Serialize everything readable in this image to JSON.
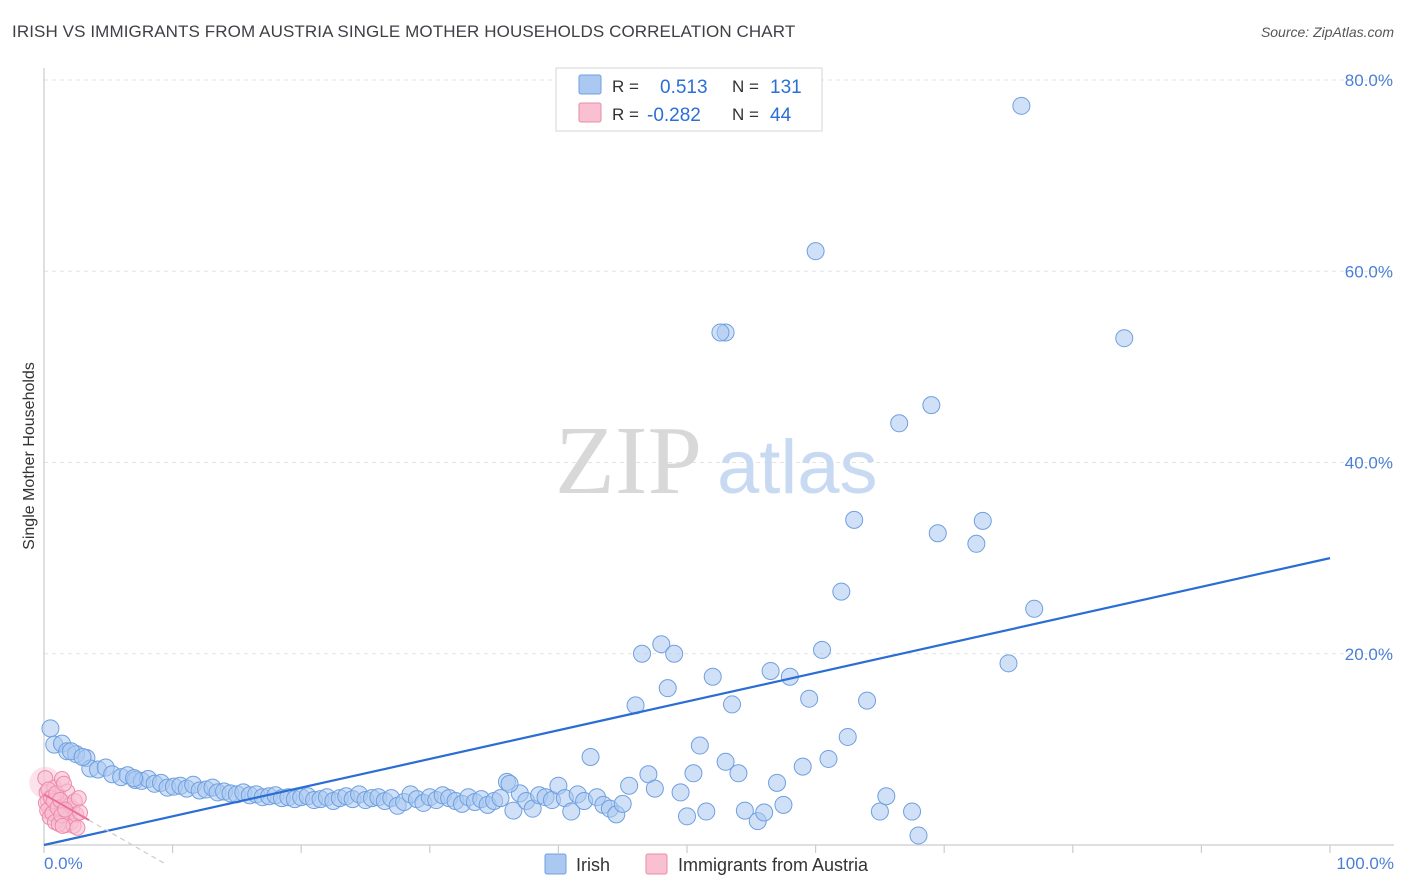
{
  "header": {
    "title": "IRISH VS IMMIGRANTS FROM AUSTRIA SINGLE MOTHER HOUSEHOLDS CORRELATION CHART",
    "source": "Source: ZipAtlas.com"
  },
  "watermark": {
    "zip": "ZIP",
    "atlas": "atlas"
  },
  "legend": {
    "rows": [
      {
        "r_label": "R =",
        "r_value": "0.513",
        "n_label": "N =",
        "n_value": "131",
        "color": "#aac8f0",
        "border": "#6f9fe0"
      },
      {
        "r_label": "R =",
        "r_value": "-0.282",
        "n_label": "N =",
        "n_value": "44",
        "color": "#f9c0d2",
        "border": "#ec8bab"
      }
    ]
  },
  "bottom_legend": [
    {
      "label": "Irish",
      "color": "#aac8f0",
      "border": "#6f9fe0"
    },
    {
      "label": "Immigrants from Austria",
      "color": "#f9c0d2",
      "border": "#ec8bab"
    }
  ],
  "chart_data": {
    "type": "scatter",
    "title": "IRISH VS IMMIGRANTS FROM AUSTRIA SINGLE MOTHER HOUSEHOLDS CORRELATION CHART",
    "xlabel": "",
    "ylabel": "Single Mother Households",
    "xlim": [
      0,
      100
    ],
    "ylim": [
      0,
      80
    ],
    "x_tick_labels": [
      "0.0%",
      "100.0%"
    ],
    "y_tick_labels": [
      "20.0%",
      "40.0%",
      "60.0%",
      "80.0%"
    ],
    "y_ticks": [
      20,
      40,
      60,
      80
    ],
    "grid": true,
    "series": [
      {
        "name": "Irish",
        "color": "#aac8f0",
        "border": "#6f9fe0",
        "trend_color": "#2a6dd4",
        "trend": {
          "x0": 0,
          "y0": 0,
          "x1": 100,
          "y1": 30
        },
        "points": [
          [
            0.5,
            12.2
          ],
          [
            0.8,
            10.5
          ],
          [
            1.4,
            10.6
          ],
          [
            1.8,
            9.8
          ],
          [
            2.5,
            9.5
          ],
          [
            3.3,
            9.1
          ],
          [
            3.6,
            8.0
          ],
          [
            4.2,
            7.9
          ],
          [
            4.8,
            8.1
          ],
          [
            5.3,
            7.4
          ],
          [
            6.0,
            7.1
          ],
          [
            6.5,
            7.3
          ],
          [
            7.1,
            6.8
          ],
          [
            7.6,
            6.7
          ],
          [
            8.1,
            6.9
          ],
          [
            8.6,
            6.4
          ],
          [
            9.1,
            6.5
          ],
          [
            9.6,
            6.0
          ],
          [
            10.1,
            6.1
          ],
          [
            10.6,
            6.2
          ],
          [
            11.1,
            5.9
          ],
          [
            11.6,
            6.3
          ],
          [
            12.1,
            5.7
          ],
          [
            12.6,
            5.8
          ],
          [
            13.1,
            6.0
          ],
          [
            13.5,
            5.5
          ],
          [
            14.0,
            5.6
          ],
          [
            14.5,
            5.4
          ],
          [
            15.0,
            5.3
          ],
          [
            15.5,
            5.5
          ],
          [
            16.0,
            5.2
          ],
          [
            16.5,
            5.3
          ],
          [
            17.0,
            5.0
          ],
          [
            17.5,
            5.1
          ],
          [
            18.0,
            5.2
          ],
          [
            18.5,
            4.9
          ],
          [
            19.0,
            5.0
          ],
          [
            19.5,
            4.8
          ],
          [
            20.0,
            5.0
          ],
          [
            20.5,
            5.1
          ],
          [
            21.0,
            4.7
          ],
          [
            21.5,
            4.8
          ],
          [
            22.0,
            5.0
          ],
          [
            22.5,
            4.6
          ],
          [
            23.0,
            4.9
          ],
          [
            23.5,
            5.1
          ],
          [
            24.0,
            4.8
          ],
          [
            24.5,
            5.3
          ],
          [
            25.0,
            4.7
          ],
          [
            25.5,
            4.9
          ],
          [
            26.0,
            5.0
          ],
          [
            26.5,
            4.6
          ],
          [
            27.0,
            4.9
          ],
          [
            27.5,
            4.1
          ],
          [
            28.0,
            4.5
          ],
          [
            28.5,
            5.3
          ],
          [
            29.0,
            4.8
          ],
          [
            29.5,
            4.4
          ],
          [
            30.0,
            5.0
          ],
          [
            30.5,
            4.7
          ],
          [
            31.0,
            5.2
          ],
          [
            31.5,
            4.9
          ],
          [
            32.0,
            4.6
          ],
          [
            32.5,
            4.3
          ],
          [
            33.0,
            5.0
          ],
          [
            33.5,
            4.5
          ],
          [
            34.0,
            4.8
          ],
          [
            34.5,
            4.2
          ],
          [
            35.0,
            4.6
          ],
          [
            35.5,
            4.9
          ],
          [
            36.0,
            6.6
          ],
          [
            36.5,
            3.6
          ],
          [
            37.0,
            5.4
          ],
          [
            37.5,
            4.6
          ],
          [
            38.0,
            3.8
          ],
          [
            38.5,
            5.2
          ],
          [
            39.0,
            5.0
          ],
          [
            39.5,
            4.7
          ],
          [
            40.0,
            6.2
          ],
          [
            40.5,
            4.9
          ],
          [
            41.0,
            3.5
          ],
          [
            41.5,
            5.3
          ],
          [
            42.0,
            4.6
          ],
          [
            42.5,
            9.2
          ],
          [
            43.0,
            5.0
          ],
          [
            43.5,
            4.2
          ],
          [
            44.0,
            3.8
          ],
          [
            44.5,
            3.2
          ],
          [
            45.0,
            4.3
          ],
          [
            45.5,
            6.2
          ],
          [
            46.0,
            14.6
          ],
          [
            46.5,
            20.0
          ],
          [
            47.0,
            7.4
          ],
          [
            47.5,
            5.9
          ],
          [
            48.0,
            21.0
          ],
          [
            48.5,
            16.4
          ],
          [
            49.0,
            20.0
          ],
          [
            49.5,
            5.5
          ],
          [
            50.0,
            3.0
          ],
          [
            50.5,
            7.5
          ],
          [
            51.0,
            10.4
          ],
          [
            51.5,
            3.5
          ],
          [
            52.0,
            17.6
          ],
          [
            53.0,
            8.7
          ],
          [
            53.5,
            14.7
          ],
          [
            54.0,
            7.5
          ],
          [
            54.5,
            3.6
          ],
          [
            55.5,
            2.5
          ],
          [
            56.0,
            3.4
          ],
          [
            56.5,
            18.2
          ],
          [
            57.0,
            6.5
          ],
          [
            57.5,
            4.2
          ],
          [
            58.0,
            17.6
          ],
          [
            59.0,
            8.2
          ],
          [
            59.5,
            15.3
          ],
          [
            60.0,
            62.1
          ],
          [
            60.5,
            20.4
          ],
          [
            61.0,
            9.0
          ],
          [
            62.0,
            26.5
          ],
          [
            62.5,
            11.3
          ],
          [
            64.0,
            15.1
          ],
          [
            63.0,
            34.0
          ],
          [
            65.0,
            3.5
          ],
          [
            65.5,
            5.1
          ],
          [
            66.5,
            44.1
          ],
          [
            67.5,
            3.5
          ],
          [
            68.0,
            1.0
          ],
          [
            69.0,
            46.0
          ],
          [
            69.5,
            32.6
          ],
          [
            72.5,
            31.5
          ],
          [
            73.0,
            33.9
          ],
          [
            75.0,
            19.0
          ],
          [
            76.0,
            77.3
          ],
          [
            77.0,
            24.7
          ],
          [
            84.0,
            53.0
          ],
          [
            53.0,
            53.6
          ],
          [
            52.6,
            53.6
          ],
          [
            2.1,
            9.8
          ],
          [
            3.0,
            9.2
          ],
          [
            7.0,
            7.0
          ],
          [
            36.2,
            6.4
          ]
        ]
      },
      {
        "name": "Immigrants from Austria",
        "color": "#f9c0d2",
        "border": "#ec8bab",
        "trend_color": "#ec6f98",
        "trend": {
          "x0": 0,
          "y0": 5.3,
          "x1": 3.5,
          "y1": 2.6
        },
        "points": [
          [
            0.1,
            7.0
          ],
          [
            0.2,
            5.5
          ],
          [
            0.3,
            4.6
          ],
          [
            0.4,
            3.8
          ],
          [
            0.5,
            5.0
          ],
          [
            0.6,
            4.2
          ],
          [
            0.7,
            3.5
          ],
          [
            0.8,
            6.0
          ],
          [
            0.9,
            4.8
          ],
          [
            1.0,
            3.2
          ],
          [
            1.1,
            5.2
          ],
          [
            1.2,
            4.0
          ],
          [
            1.3,
            2.6
          ],
          [
            1.4,
            6.9
          ],
          [
            1.5,
            3.6
          ],
          [
            1.6,
            4.4
          ],
          [
            1.7,
            2.1
          ],
          [
            1.8,
            5.6
          ],
          [
            1.9,
            3.0
          ],
          [
            2.0,
            4.1
          ],
          [
            2.1,
            2.4
          ],
          [
            2.2,
            3.8
          ],
          [
            2.3,
            2.0
          ],
          [
            2.4,
            4.6
          ],
          [
            2.5,
            3.2
          ],
          [
            2.6,
            1.8
          ],
          [
            2.7,
            4.9
          ],
          [
            2.8,
            3.4
          ],
          [
            0.15,
            4.4
          ],
          [
            0.25,
            3.6
          ],
          [
            0.35,
            5.8
          ],
          [
            0.45,
            2.9
          ],
          [
            0.55,
            4.9
          ],
          [
            0.65,
            3.3
          ],
          [
            0.75,
            4.6
          ],
          [
            0.85,
            2.4
          ],
          [
            0.95,
            5.4
          ],
          [
            1.05,
            3.9
          ],
          [
            1.15,
            2.2
          ],
          [
            1.25,
            4.7
          ],
          [
            1.35,
            3.1
          ],
          [
            1.45,
            2.0
          ],
          [
            1.55,
            6.4
          ],
          [
            1.65,
            3.7
          ]
        ]
      }
    ]
  }
}
